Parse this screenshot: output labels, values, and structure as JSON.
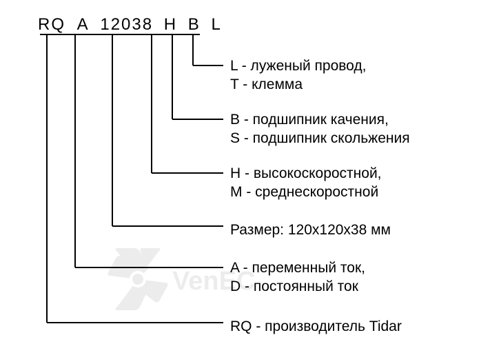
{
  "partNumber": {
    "seg1": "RQ",
    "seg2": "A",
    "seg3": "12038",
    "seg4": "H",
    "seg5": "B",
    "seg6": "L"
  },
  "descriptions": {
    "d6": {
      "line1": "L - луженый провод,",
      "line2": "T - клемма"
    },
    "d5": {
      "line1": "B - подшипник качения,",
      "line2": "S - подшипник скольжения"
    },
    "d4": {
      "line1": "H - высокоскоростной,",
      "line2": "M - среднескоростной"
    },
    "d3": {
      "line1": "Размер: 120x120x38 мм"
    },
    "d2": {
      "line1": "A - переменный ток,",
      "line2": "D - постоянный ток"
    },
    "d1": {
      "line1": "RQ - производитель Tidar"
    }
  },
  "layout": {
    "topLineY": 50,
    "segmentX": {
      "seg1": 68,
      "seg2": 109,
      "seg3": 163,
      "seg4": 220,
      "seg5": 250,
      "seg6": 280
    },
    "descX": 334,
    "descY": {
      "d6": 82,
      "d5": 160,
      "d4": 238,
      "d3": 320,
      "d2": 375,
      "d1": 460
    },
    "cornerY": {
      "d6": 95,
      "d5": 173,
      "d4": 251,
      "d3": 328,
      "d2": 388,
      "d1": 468
    },
    "lineColor": "#000000",
    "lineWidth": 2,
    "horizEndX": 324
  }
}
